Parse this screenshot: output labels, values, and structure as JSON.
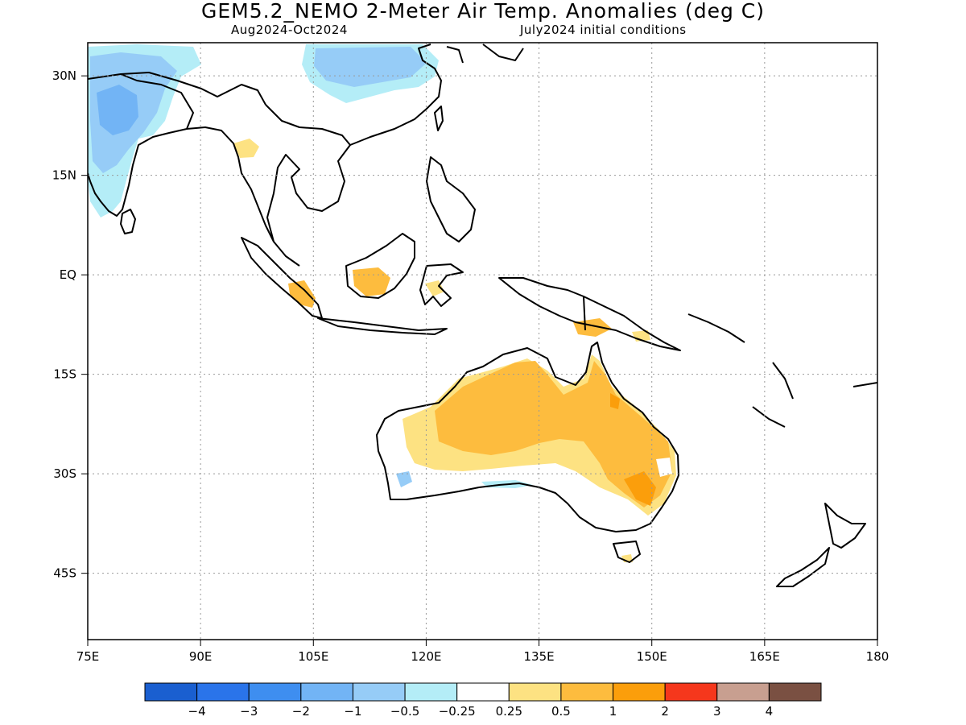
{
  "title": "GEM5.2_NEMO 2-Meter Air Temp. Anomalies (deg C)",
  "subtitle_left": "Aug2024-Oct2024",
  "subtitle_right": "July2024 initial conditions",
  "map": {
    "lon_range": [
      75,
      180
    ],
    "lat_range": [
      -55,
      35
    ],
    "lat_ticks": [
      {
        "value": 30,
        "label": "30N"
      },
      {
        "value": 15,
        "label": "15N"
      },
      {
        "value": 0,
        "label": "EQ"
      },
      {
        "value": -15,
        "label": "15S"
      },
      {
        "value": -30,
        "label": "30S"
      },
      {
        "value": -45,
        "label": "45S"
      }
    ],
    "lon_ticks": [
      {
        "value": 75,
        "label": "75E"
      },
      {
        "value": 90,
        "label": "90E"
      },
      {
        "value": 105,
        "label": "105E"
      },
      {
        "value": 120,
        "label": "120E"
      },
      {
        "value": 135,
        "label": "135E"
      },
      {
        "value": 150,
        "label": "150E"
      },
      {
        "value": 165,
        "label": "165E"
      },
      {
        "value": 180,
        "label": "180"
      }
    ],
    "grid": "dotted"
  },
  "colorbar": {
    "colors": [
      "#1a5fd0",
      "#2a74ea",
      "#3e8ef0",
      "#72b4f5",
      "#96ccf7",
      "#b4edf7",
      "#ffffff",
      "#fde282",
      "#fdbc3e",
      "#fb9e0b",
      "#f5371c",
      "#c89f90",
      "#7a5042"
    ],
    "labels": [
      "−4",
      "−3",
      "−2",
      "−1",
      "−0.5",
      "−0.25",
      "0.25",
      "0.5",
      "1",
      "2",
      "3",
      "4"
    ]
  },
  "colors": {
    "cool_light": "#b4edf7",
    "cool_medium": "#96ccf7",
    "cool_strong": "#72b4f5",
    "warm_light": "#fde282",
    "warm_medium": "#fdbc3e",
    "warm_strong": "#fb9e0b"
  }
}
